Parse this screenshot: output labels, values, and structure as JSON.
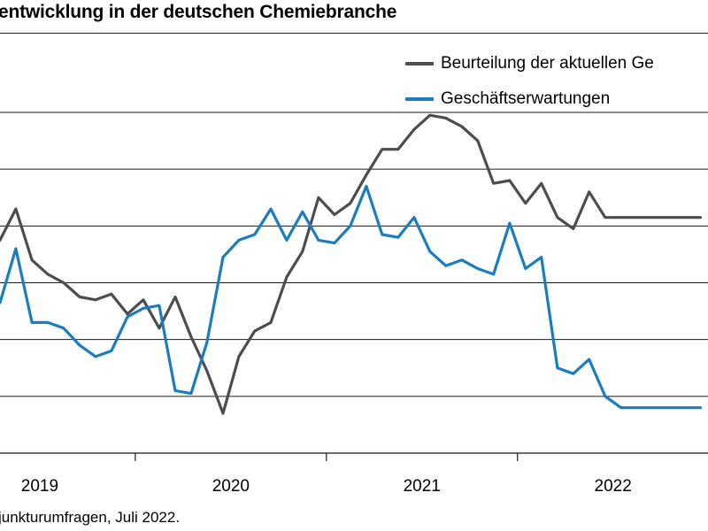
{
  "title": "entwicklung in der deutschen Chemiebranche",
  "source": "junkturumfragen, Juli 2022.",
  "chart_data": {
    "type": "line",
    "x_range": [
      2018.875,
      2022.58
    ],
    "y_range": [
      0,
      6
    ],
    "y_gridlines": [
      1,
      2,
      3,
      4,
      5,
      6
    ],
    "x_tick_labels": [
      "2019",
      "2020",
      "2021",
      "2022"
    ],
    "x_tick_label_positions": [
      2019.083,
      2020.083,
      2021.083,
      2022.083
    ],
    "x_tick_marks": [
      2019.583,
      2020.583,
      2021.583
    ],
    "legend_placement": "top-right",
    "series": [
      {
        "name": "Beurteilung der aktuellen Ge",
        "color": "#4d4d4d",
        "x": [
          2018.875,
          2018.958,
          2019.042,
          2019.125,
          2019.208,
          2019.292,
          2019.375,
          2019.458,
          2019.542,
          2019.625,
          2019.708,
          2019.792,
          2019.875,
          2019.958,
          2020.042,
          2020.125,
          2020.208,
          2020.292,
          2020.375,
          2020.458,
          2020.542,
          2020.625,
          2020.708,
          2020.792,
          2020.875,
          2020.958,
          2021.042,
          2021.125,
          2021.208,
          2021.292,
          2021.375,
          2021.458,
          2021.542,
          2021.625,
          2021.708,
          2021.792,
          2021.875,
          2021.958,
          2022.042,
          2022.125,
          2022.208,
          2022.292,
          2022.375,
          2022.458,
          2022.54
        ],
        "values": [
          3.75,
          4.3,
          3.4,
          3.15,
          3.0,
          2.75,
          2.7,
          2.8,
          2.45,
          2.7,
          2.2,
          2.75,
          2.05,
          1.45,
          0.7,
          1.7,
          2.15,
          2.3,
          3.1,
          3.55,
          4.5,
          4.2,
          4.4,
          4.9,
          5.35,
          5.35,
          5.7,
          5.95,
          5.9,
          5.75,
          5.5,
          4.75,
          4.8,
          4.4,
          4.75,
          4.15,
          3.95,
          4.6,
          4.15,
          4.15,
          4.15,
          4.15,
          4.15,
          4.15,
          4.15
        ]
      },
      {
        "name": "Geschäftserwartungen",
        "color": "#1a7dc0",
        "x": [
          2018.875,
          2018.958,
          2019.042,
          2019.125,
          2019.208,
          2019.292,
          2019.375,
          2019.458,
          2019.542,
          2019.625,
          2019.708,
          2019.792,
          2019.875,
          2019.958,
          2020.042,
          2020.125,
          2020.208,
          2020.292,
          2020.375,
          2020.458,
          2020.542,
          2020.625,
          2020.708,
          2020.792,
          2020.875,
          2020.958,
          2021.042,
          2021.125,
          2021.208,
          2021.292,
          2021.375,
          2021.458,
          2021.542,
          2021.625,
          2021.708,
          2021.792,
          2021.875,
          2021.958,
          2022.042,
          2022.125,
          2022.208,
          2022.292,
          2022.375,
          2022.458,
          2022.54
        ],
        "values": [
          2.65,
          3.6,
          2.3,
          2.3,
          2.2,
          1.9,
          1.7,
          1.8,
          2.4,
          2.55,
          2.6,
          1.1,
          1.05,
          1.95,
          3.45,
          3.75,
          3.85,
          4.3,
          3.75,
          4.25,
          3.75,
          3.7,
          4.0,
          4.7,
          3.85,
          3.8,
          4.15,
          3.55,
          3.3,
          3.4,
          3.25,
          3.15,
          4.05,
          3.25,
          3.45,
          1.5,
          1.4,
          1.65,
          1.0,
          0.8,
          0.8,
          0.8,
          0.8,
          0.8,
          0.8
        ]
      }
    ]
  }
}
